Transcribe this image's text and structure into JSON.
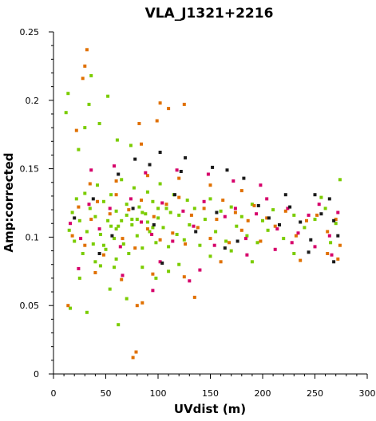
{
  "chart_data": {
    "type": "scatter",
    "title": "VLA_J1321+2216",
    "xlabel": "UVdist (m)",
    "ylabel": "Amp:corrected",
    "xlim": [
      0,
      300
    ],
    "ylim": [
      0,
      0.25
    ],
    "xticks": [
      "0",
      "50",
      "100",
      "150",
      "200",
      "250",
      "300"
    ],
    "yticks": [
      "0",
      "0.05",
      "0.1",
      "0.15",
      "0.2",
      "0.25"
    ],
    "grid": false,
    "legend": "none",
    "series": [
      {
        "color": "#7acc00",
        "points": [
          [
            12,
            0.191
          ],
          [
            14,
            0.205
          ],
          [
            24,
            0.164
          ],
          [
            30,
            0.18
          ],
          [
            34,
            0.197
          ],
          [
            36,
            0.218
          ],
          [
            44,
            0.183
          ],
          [
            52,
            0.203
          ],
          [
            61,
            0.171
          ],
          [
            74,
            0.167
          ],
          [
            58,
            0.078
          ],
          [
            54,
            0.062
          ],
          [
            62,
            0.036
          ],
          [
            32,
            0.045
          ],
          [
            16,
            0.048
          ],
          [
            25,
            0.07
          ],
          [
            40,
            0.082
          ],
          [
            48,
            0.094
          ],
          [
            70,
            0.055
          ],
          [
            98,
            0.07
          ],
          [
            15,
            0.105
          ],
          [
            18,
            0.118
          ],
          [
            20,
            0.097
          ],
          [
            22,
            0.128
          ],
          [
            25,
            0.112
          ],
          [
            28,
            0.088
          ],
          [
            30,
            0.132
          ],
          [
            32,
            0.104
          ],
          [
            35,
            0.121
          ],
          [
            38,
            0.095
          ],
          [
            40,
            0.115
          ],
          [
            42,
            0.138
          ],
          [
            45,
            0.102
          ],
          [
            48,
            0.126
          ],
          [
            50,
            0.091
          ],
          [
            52,
            0.112
          ],
          [
            55,
            0.131
          ],
          [
            58,
            0.099
          ],
          [
            60,
            0.119
          ],
          [
            62,
            0.108
          ],
          [
            65,
            0.142
          ],
          [
            67,
            0.095
          ],
          [
            70,
            0.124
          ],
          [
            72,
            0.088
          ],
          [
            75,
            0.113
          ],
          [
            77,
            0.136
          ],
          [
            80,
            0.101
          ],
          [
            82,
            0.122
          ],
          [
            85,
            0.092
          ],
          [
            88,
            0.117
          ],
          [
            90,
            0.133
          ],
          [
            92,
            0.104
          ],
          [
            95,
            0.126
          ],
          [
            98,
            0.096
          ],
          [
            100,
            0.114
          ],
          [
            102,
            0.139
          ],
          [
            105,
            0.107
          ],
          [
            108,
            0.121
          ],
          [
            110,
            0.093
          ],
          [
            112,
            0.118
          ],
          [
            115,
            0.131
          ],
          [
            118,
            0.102
          ],
          [
            120,
            0.116
          ],
          [
            125,
            0.098
          ],
          [
            128,
            0.127
          ],
          [
            130,
            0.109
          ],
          [
            135,
            0.121
          ],
          [
            140,
            0.094
          ],
          [
            145,
            0.113
          ],
          [
            150,
            0.128
          ],
          [
            155,
            0.104
          ],
          [
            160,
            0.119
          ],
          [
            165,
            0.097
          ],
          [
            170,
            0.122
          ],
          [
            175,
            0.108
          ],
          [
            180,
            0.115
          ],
          [
            185,
            0.101
          ],
          [
            190,
            0.124
          ],
          [
            195,
            0.096
          ],
          [
            200,
            0.112
          ],
          [
            205,
            0.105
          ],
          [
            210,
            0.12
          ],
          [
            220,
            0.099
          ],
          [
            230,
            0.116
          ],
          [
            240,
            0.107
          ],
          [
            250,
            0.113
          ],
          [
            260,
            0.121
          ],
          [
            265,
            0.096
          ],
          [
            270,
            0.11
          ],
          [
            274,
            0.142
          ],
          [
            256,
            0.129
          ],
          [
            230,
            0.088
          ],
          [
            190,
            0.082
          ],
          [
            150,
            0.086
          ],
          [
            120,
            0.08
          ],
          [
            85,
            0.078
          ],
          [
            60,
            0.084
          ],
          [
            45,
            0.079
          ],
          [
            110,
            0.075
          ],
          [
            170,
            0.09
          ],
          [
            70,
            0.116
          ],
          [
            75,
            0.109
          ],
          [
            80,
            0.113
          ],
          [
            85,
            0.118
          ],
          [
            90,
            0.111
          ],
          [
            95,
            0.107
          ],
          [
            100,
            0.121
          ],
          [
            60,
            0.106
          ],
          [
            65,
            0.112
          ],
          [
            55,
            0.108
          ]
        ]
      },
      {
        "color": "#e07000",
        "points": [
          [
            32,
            0.237
          ],
          [
            30,
            0.225
          ],
          [
            28,
            0.216
          ],
          [
            22,
            0.178
          ],
          [
            99,
            0.185
          ],
          [
            102,
            0.198
          ],
          [
            110,
            0.194
          ],
          [
            125,
            0.197
          ],
          [
            82,
            0.183
          ],
          [
            84,
            0.168
          ],
          [
            79,
            0.016
          ],
          [
            76,
            0.012
          ],
          [
            80,
            0.05
          ],
          [
            85,
            0.052
          ],
          [
            14,
            0.05
          ],
          [
            135,
            0.056
          ],
          [
            272,
            0.084
          ],
          [
            262,
            0.088
          ],
          [
            236,
            0.083
          ],
          [
            160,
            0.082
          ],
          [
            18,
            0.101
          ],
          [
            24,
            0.122
          ],
          [
            30,
            0.094
          ],
          [
            36,
            0.113
          ],
          [
            42,
            0.126
          ],
          [
            48,
            0.087
          ],
          [
            54,
            0.117
          ],
          [
            60,
            0.131
          ],
          [
            66,
            0.099
          ],
          [
            72,
            0.12
          ],
          [
            78,
            0.092
          ],
          [
            84,
            0.127
          ],
          [
            90,
            0.106
          ],
          [
            96,
            0.115
          ],
          [
            102,
            0.098
          ],
          [
            108,
            0.124
          ],
          [
            114,
            0.103
          ],
          [
            120,
            0.129
          ],
          [
            126,
            0.095
          ],
          [
            132,
            0.116
          ],
          [
            138,
            0.107
          ],
          [
            144,
            0.121
          ],
          [
            150,
            0.099
          ],
          [
            156,
            0.113
          ],
          [
            162,
            0.127
          ],
          [
            168,
            0.096
          ],
          [
            174,
            0.118
          ],
          [
            180,
            0.105
          ],
          [
            186,
            0.112
          ],
          [
            192,
            0.123
          ],
          [
            198,
            0.097
          ],
          [
            204,
            0.114
          ],
          [
            212,
            0.108
          ],
          [
            222,
            0.119
          ],
          [
            232,
            0.101
          ],
          [
            242,
            0.112
          ],
          [
            252,
            0.116
          ],
          [
            262,
            0.104
          ],
          [
            270,
            0.113
          ],
          [
            274,
            0.094
          ],
          [
            40,
            0.074
          ],
          [
            65,
            0.069
          ],
          [
            95,
            0.073
          ],
          [
            125,
            0.071
          ],
          [
            150,
            0.138
          ],
          [
            120,
            0.143
          ],
          [
            90,
            0.145
          ],
          [
            60,
            0.141
          ],
          [
            35,
            0.139
          ],
          [
            180,
            0.134
          ]
        ]
      },
      {
        "color": "#d6006a",
        "points": [
          [
            16,
            0.11
          ],
          [
            26,
            0.099
          ],
          [
            34,
            0.124
          ],
          [
            44,
            0.106
          ],
          [
            54,
            0.121
          ],
          [
            64,
            0.093
          ],
          [
            74,
            0.128
          ],
          [
            84,
            0.111
          ],
          [
            94,
            0.102
          ],
          [
            104,
            0.125
          ],
          [
            114,
            0.097
          ],
          [
            124,
            0.119
          ],
          [
            134,
            0.108
          ],
          [
            144,
            0.126
          ],
          [
            154,
            0.094
          ],
          [
            164,
            0.115
          ],
          [
            174,
            0.121
          ],
          [
            184,
            0.099
          ],
          [
            194,
            0.117
          ],
          [
            204,
            0.128
          ],
          [
            214,
            0.106
          ],
          [
            224,
            0.121
          ],
          [
            234,
            0.103
          ],
          [
            244,
            0.116
          ],
          [
            254,
            0.124
          ],
          [
            264,
            0.101
          ],
          [
            272,
            0.118
          ],
          [
            266,
            0.087
          ],
          [
            250,
            0.093
          ],
          [
            228,
            0.096
          ],
          [
            36,
            0.149
          ],
          [
            58,
            0.152
          ],
          [
            88,
            0.147
          ],
          [
            118,
            0.149
          ],
          [
            148,
            0.146
          ],
          [
            172,
            0.141
          ],
          [
            198,
            0.138
          ],
          [
            24,
            0.077
          ],
          [
            66,
            0.072
          ],
          [
            102,
            0.082
          ],
          [
            140,
            0.076
          ],
          [
            185,
            0.087
          ],
          [
            212,
            0.091
          ],
          [
            130,
            0.068
          ],
          [
            95,
            0.061
          ]
        ]
      },
      {
        "color": "#1a1a1a",
        "points": [
          [
            20,
            0.114
          ],
          [
            38,
            0.128
          ],
          [
            56,
            0.101
          ],
          [
            76,
            0.121
          ],
          [
            96,
            0.109
          ],
          [
            116,
            0.131
          ],
          [
            136,
            0.104
          ],
          [
            156,
            0.118
          ],
          [
            176,
            0.097
          ],
          [
            196,
            0.123
          ],
          [
            206,
            0.114
          ],
          [
            216,
            0.109
          ],
          [
            226,
            0.122
          ],
          [
            236,
            0.111
          ],
          [
            246,
            0.098
          ],
          [
            256,
            0.117
          ],
          [
            264,
            0.128
          ],
          [
            268,
            0.112
          ],
          [
            272,
            0.101
          ],
          [
            250,
            0.131
          ],
          [
            222,
            0.131
          ],
          [
            182,
            0.143
          ],
          [
            152,
            0.151
          ],
          [
            122,
            0.148
          ],
          [
            92,
            0.153
          ],
          [
            62,
            0.146
          ],
          [
            126,
            0.158
          ],
          [
            166,
            0.149
          ],
          [
            102,
            0.162
          ],
          [
            78,
            0.157
          ],
          [
            44,
            0.088
          ],
          [
            104,
            0.081
          ],
          [
            164,
            0.092
          ],
          [
            244,
            0.089
          ],
          [
            268,
            0.082
          ]
        ]
      }
    ]
  }
}
